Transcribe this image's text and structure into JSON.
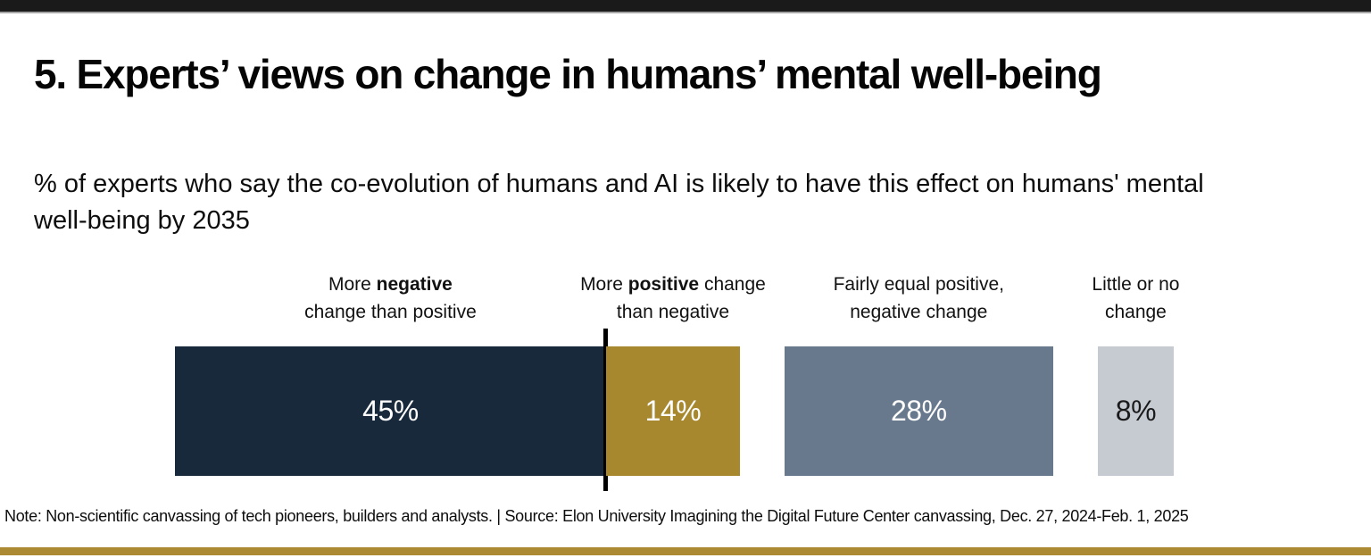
{
  "page": {
    "top_bar_color": "#1A1A1A",
    "accent_bar_color": "#AB8A33",
    "background": "#FFFFFF"
  },
  "header": {
    "title": "5. Experts’ views on change in humans’ mental well-being",
    "subtitle_line1": "% of experts who say the co-evolution of humans and AI is likely to have this effect on humans' mental",
    "subtitle_line2": "well-being by 2035"
  },
  "chart_data": {
    "type": "bar",
    "title": "5. Experts’ views on change in humans’ mental well-being",
    "subtitle": "% of experts who say the co-evolution of humans and AI is likely to have this effect on humans' mental well-being by 2035",
    "unit": "%",
    "axes": "none",
    "legend": "none",
    "categories": [
      "More negative change than positive",
      "More positive change than negative",
      "Fairly equal positive, negative change",
      "Little or no change"
    ],
    "values": [
      45,
      14,
      28,
      8
    ],
    "bars": [
      {
        "category": "More negative change than positive",
        "value": 45,
        "value_label": "45%",
        "color": "#17293A",
        "text_color": "#FFFFFF",
        "label_line1_pre": "More ",
        "label_line1_bold": "negative",
        "label_line1_post": "",
        "label_line2": "change than positive"
      },
      {
        "category": "More positive change than negative",
        "value": 14,
        "value_label": "14%",
        "color": "#A8882F",
        "text_color": "#FFFFFF",
        "label_line1_pre": "More ",
        "label_line1_bold": "positive",
        "label_line1_post": " change",
        "label_line2": "than negative"
      },
      {
        "category": "Fairly equal positive, negative change",
        "value": 28,
        "value_label": "28%",
        "color": "#68798E",
        "text_color": "#FFFFFF",
        "label_line1_pre": "Fairly equal positive,",
        "label_line1_bold": "",
        "label_line1_post": "",
        "label_line2": "negative change"
      },
      {
        "category": "Little or no change",
        "value": 8,
        "value_label": "8%",
        "color": "#C5CBD1",
        "text_color": "#1A1A1A",
        "label_line1_pre": "Little or no",
        "label_line1_bold": "",
        "label_line1_post": "",
        "label_line2": "change"
      }
    ],
    "divider": {
      "between": [
        "More negative change than positive",
        "More positive change than negative"
      ],
      "color": "#000000"
    }
  },
  "footer": {
    "note": "Note: Non-scientific canvassing of tech pioneers, builders and analysts. | Source: Elon University Imagining the Digital Future Center canvassing,  Dec. 27, 2024-Feb. 1, 2025"
  }
}
